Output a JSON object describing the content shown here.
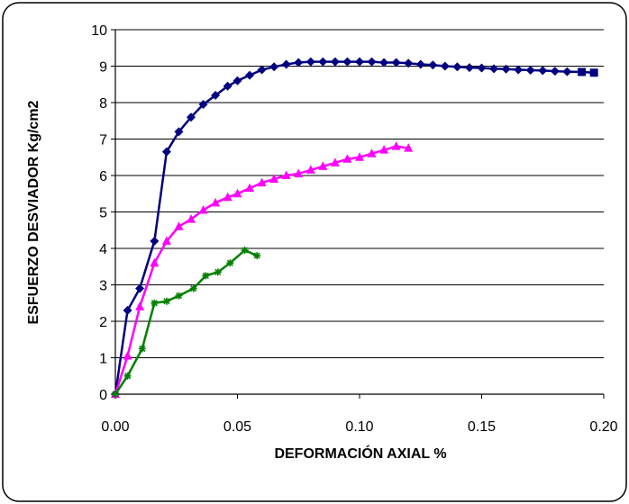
{
  "chart_data": {
    "type": "line",
    "title": "",
    "xlabel": "DEFORMACIÓN AXIAL %",
    "ylabel": "ESFUERZO DESVIADOR Kg/cm2",
    "xlim": [
      0,
      0.2
    ],
    "ylim": [
      0,
      10
    ],
    "x_ticks": [
      "0.00",
      "0.05",
      "0.10",
      "0.15",
      "0.20"
    ],
    "y_ticks": [
      "0",
      "1",
      "2",
      "3",
      "4",
      "5",
      "6",
      "7",
      "8",
      "9",
      "10"
    ],
    "grid": "horizontal",
    "legend": "none",
    "series": [
      {
        "color": "#000080",
        "marker": "diamond",
        "x": [
          0.0,
          0.005,
          0.01,
          0.016,
          0.021,
          0.026,
          0.031,
          0.036,
          0.041,
          0.046,
          0.05,
          0.055,
          0.06,
          0.065,
          0.07,
          0.075,
          0.08,
          0.085,
          0.09,
          0.095,
          0.1,
          0.105,
          0.11,
          0.115,
          0.12,
          0.125,
          0.13,
          0.135,
          0.14,
          0.145,
          0.15,
          0.155,
          0.16,
          0.165,
          0.17,
          0.175,
          0.18,
          0.185,
          0.191,
          0.196
        ],
        "values": [
          0,
          2.3,
          2.9,
          4.2,
          6.65,
          7.2,
          7.6,
          7.95,
          8.2,
          8.45,
          8.6,
          8.75,
          8.9,
          8.98,
          9.05,
          9.1,
          9.12,
          9.12,
          9.12,
          9.12,
          9.12,
          9.12,
          9.1,
          9.1,
          9.08,
          9.05,
          9.03,
          9.0,
          8.98,
          8.96,
          8.95,
          8.93,
          8.92,
          8.9,
          8.89,
          8.88,
          8.86,
          8.85,
          8.84,
          8.82
        ]
      },
      {
        "color": "#FF00FF",
        "marker": "triangle",
        "x": [
          0.0,
          0.005,
          0.01,
          0.016,
          0.021,
          0.026,
          0.031,
          0.036,
          0.041,
          0.046,
          0.05,
          0.055,
          0.06,
          0.065,
          0.07,
          0.075,
          0.08,
          0.085,
          0.09,
          0.095,
          0.1,
          0.105,
          0.11,
          0.115,
          0.12
        ],
        "values": [
          0,
          1.05,
          2.4,
          3.6,
          4.2,
          4.6,
          4.8,
          5.05,
          5.25,
          5.4,
          5.5,
          5.65,
          5.8,
          5.9,
          6.0,
          6.05,
          6.15,
          6.25,
          6.35,
          6.45,
          6.5,
          6.6,
          6.7,
          6.8,
          6.75
        ]
      },
      {
        "color": "#008000",
        "marker": "star",
        "x": [
          0.0,
          0.005,
          0.011,
          0.016,
          0.021,
          0.026,
          0.032,
          0.037,
          0.042,
          0.047,
          0.053,
          0.058
        ],
        "values": [
          0,
          0.5,
          1.25,
          2.5,
          2.55,
          2.7,
          2.9,
          3.25,
          3.35,
          3.6,
          3.95,
          3.8
        ]
      }
    ]
  }
}
